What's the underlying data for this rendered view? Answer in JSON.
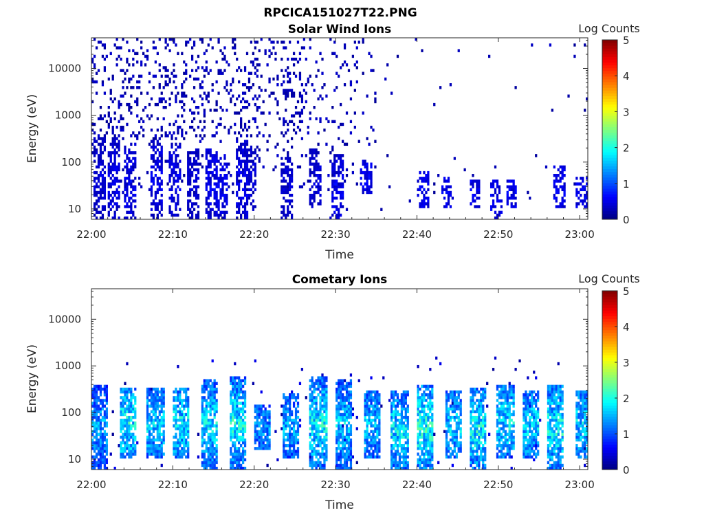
{
  "figure_title": "RPCICA151027T22.PNG",
  "colormap": "jet",
  "chart_data": [
    {
      "type": "heatmap",
      "title": "Solar Wind Ions",
      "xlabel": "Time",
      "ylabel": "Energy (eV)",
      "yscale": "log",
      "xlim": [
        "22:00",
        "23:01"
      ],
      "ylim": [
        6,
        45000
      ],
      "xticks": [
        "22:00",
        "22:10",
        "22:20",
        "22:30",
        "22:40",
        "22:50",
        "23:00"
      ],
      "yticks": [
        "10",
        "100",
        "1000",
        "10000"
      ],
      "colorbar": {
        "label": "Log Counts",
        "ticks": [
          "0",
          "1",
          "2",
          "3",
          "4",
          "5"
        ],
        "range": [
          0,
          5
        ]
      },
      "description_data": {
        "bursts": [
          {
            "t": 1.0,
            "emin": 6,
            "emax": 400,
            "level": 0.4
          },
          {
            "t": 2.8,
            "emin": 6,
            "emax": 300,
            "level": 0.5
          },
          {
            "t": 4.8,
            "emin": 6,
            "emax": 250,
            "level": 0.5
          },
          {
            "t": 8.0,
            "emin": 6,
            "emax": 300,
            "level": 0.5
          },
          {
            "t": 10.3,
            "emin": 6,
            "emax": 250,
            "level": 0.5
          },
          {
            "t": 12.5,
            "emin": 6,
            "emax": 200,
            "level": 0.4
          },
          {
            "t": 14.7,
            "emin": 6,
            "emax": 200,
            "level": 0.5
          },
          {
            "t": 16.0,
            "emin": 6,
            "emax": 150,
            "level": 0.5
          },
          {
            "t": 18.5,
            "emin": 6,
            "emax": 300,
            "level": 0.5
          },
          {
            "t": 19.5,
            "emin": 10,
            "emax": 200,
            "level": 0.4
          },
          {
            "t": 24.0,
            "emin": 6,
            "emax": 150,
            "level": 0.4
          },
          {
            "t": 27.5,
            "emin": 10,
            "emax": 200,
            "level": 0.4
          },
          {
            "t": 30.3,
            "emin": 6,
            "emax": 150,
            "level": 0.5
          },
          {
            "t": 33.8,
            "emin": 20,
            "emax": 120,
            "level": 0.5
          },
          {
            "t": 40.8,
            "emin": 10,
            "emax": 60,
            "level": 0.5
          },
          {
            "t": 43.6,
            "emin": 10,
            "emax": 50,
            "level": 0.5
          },
          {
            "t": 47.1,
            "emin": 10,
            "emax": 40,
            "level": 0.5
          },
          {
            "t": 49.8,
            "emin": 6,
            "emax": 40,
            "level": 0.5
          },
          {
            "t": 51.6,
            "emin": 10,
            "emax": 40,
            "level": 0.5
          },
          {
            "t": 57.5,
            "emin": 10,
            "emax": 80,
            "level": 0.5
          },
          {
            "t": 60.3,
            "emin": 10,
            "emax": 50,
            "level": 0.5
          }
        ]
      }
    },
    {
      "type": "heatmap",
      "title": "Cometary Ions",
      "xlabel": "Time",
      "ylabel": "Energy (eV)",
      "yscale": "log",
      "xlim": [
        "22:00",
        "23:01"
      ],
      "ylim": [
        6,
        45000
      ],
      "xticks": [
        "22:00",
        "22:10",
        "22:20",
        "22:30",
        "22:40",
        "22:50",
        "23:00"
      ],
      "yticks": [
        "10",
        "100",
        "1000",
        "10000"
      ],
      "colorbar": {
        "label": "Log Counts",
        "ticks": [
          "0",
          "1",
          "2",
          "3",
          "4",
          "5"
        ],
        "range": [
          0,
          5
        ]
      },
      "description_data": {
        "bursts": [
          {
            "t": 1.0,
            "emin": 6,
            "emax": 400,
            "level": 1.3
          },
          {
            "t": 4.5,
            "emin": 10,
            "emax": 350,
            "level": 1.7
          },
          {
            "t": 7.8,
            "emin": 10,
            "emax": 350,
            "level": 1.5
          },
          {
            "t": 11.0,
            "emin": 10,
            "emax": 350,
            "level": 1.6
          },
          {
            "t": 14.5,
            "emin": 6,
            "emax": 500,
            "level": 1.6
          },
          {
            "t": 18.0,
            "emin": 6,
            "emax": 600,
            "level": 1.7
          },
          {
            "t": 21.0,
            "emin": 15,
            "emax": 150,
            "level": 1.2
          },
          {
            "t": 24.5,
            "emin": 10,
            "emax": 250,
            "level": 1.3
          },
          {
            "t": 27.8,
            "emin": 6,
            "emax": 600,
            "level": 1.7
          },
          {
            "t": 31.0,
            "emin": 6,
            "emax": 500,
            "level": 1.5
          },
          {
            "t": 34.5,
            "emin": 10,
            "emax": 300,
            "level": 1.4
          },
          {
            "t": 37.8,
            "emin": 6,
            "emax": 300,
            "level": 1.6
          },
          {
            "t": 41.0,
            "emin": 6,
            "emax": 400,
            "level": 1.8
          },
          {
            "t": 44.5,
            "emin": 10,
            "emax": 300,
            "level": 1.5
          },
          {
            "t": 47.5,
            "emin": 6,
            "emax": 350,
            "level": 1.7
          },
          {
            "t": 50.8,
            "emin": 10,
            "emax": 400,
            "level": 1.6
          },
          {
            "t": 54.0,
            "emin": 10,
            "emax": 300,
            "level": 1.5
          },
          {
            "t": 57.0,
            "emin": 6,
            "emax": 400,
            "level": 1.7
          },
          {
            "t": 60.5,
            "emin": 10,
            "emax": 300,
            "level": 1.5
          }
        ]
      }
    }
  ]
}
